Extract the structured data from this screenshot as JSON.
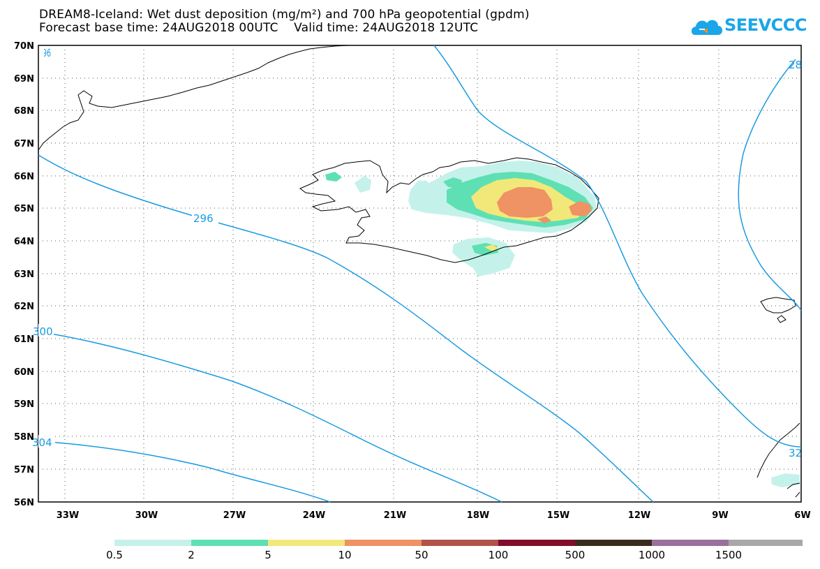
{
  "header": {
    "title_line1": "DREAM8-Iceland: Wet dust deposition (mg/m²) and 700 hPa geopotential (gpdm)",
    "title_line2": "Forecast base time: 24AUG2018 00UTC    Valid time: 24AUG2018 12UTC",
    "logo_text": "SEEVCCC"
  },
  "map": {
    "lat_labels": [
      "70N",
      "69N",
      "68N",
      "67N",
      "66N",
      "65N",
      "64N",
      "63N",
      "62N",
      "61N",
      "60N",
      "59N",
      "58N",
      "57N",
      "56N"
    ],
    "lon_labels": [
      "33W",
      "30W",
      "27W",
      "24W",
      "21W",
      "18W",
      "15W",
      "12W",
      "9W",
      "6W"
    ],
    "contour_labels": [
      "296",
      "296",
      "28",
      "300",
      "304",
      "32"
    ],
    "colors": {
      "contour": "#1a9be0",
      "coast": "#000000"
    }
  },
  "legend": {
    "labels": [
      "0.5",
      "2",
      "5",
      "10",
      "50",
      "100",
      "500",
      "1000",
      "1500"
    ],
    "colors": [
      "#c4f2ea",
      "#5ee0b4",
      "#f2e87a",
      "#ef9264",
      "#b0544b",
      "#820c2a",
      "#3a2c1c",
      "#9a6f9e",
      "#a8a8a8"
    ]
  }
}
